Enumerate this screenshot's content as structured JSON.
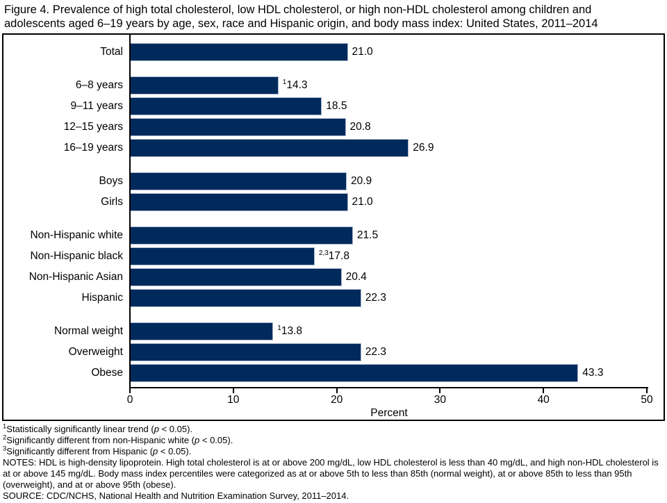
{
  "title": "Figure 4. Prevalence of high total cholesterol, low HDL cholesterol, or high non-HDL cholesterol among children and adolescents aged 6–19 years by age, sex, race and Hispanic origin, and body mass index: United States, 2011–2014",
  "chart_data": {
    "type": "bar",
    "orientation": "horizontal",
    "xlabel": "Percent",
    "xlim": [
      0,
      50
    ],
    "xticks": [
      0,
      10,
      20,
      30,
      40,
      50
    ],
    "bar_color": "#002a5c",
    "grid": false,
    "legend": false,
    "groups": [
      {
        "name": "total",
        "rows": [
          {
            "label": "Total",
            "value": 21.0,
            "value_label": "21.0",
            "sup": ""
          }
        ]
      },
      {
        "name": "age",
        "rows": [
          {
            "label": "6–8 years",
            "value": 14.3,
            "value_label": "14.3",
            "sup": "1"
          },
          {
            "label": "9–11 years",
            "value": 18.5,
            "value_label": "18.5",
            "sup": ""
          },
          {
            "label": "12–15 years",
            "value": 20.8,
            "value_label": "20.8",
            "sup": ""
          },
          {
            "label": "16–19 years",
            "value": 26.9,
            "value_label": "26.9",
            "sup": ""
          }
        ]
      },
      {
        "name": "sex",
        "rows": [
          {
            "label": "Boys",
            "value": 20.9,
            "value_label": "20.9",
            "sup": ""
          },
          {
            "label": "Girls",
            "value": 21.0,
            "value_label": "21.0",
            "sup": ""
          }
        ]
      },
      {
        "name": "race-hispanic-origin",
        "rows": [
          {
            "label": "Non-Hispanic white",
            "value": 21.5,
            "value_label": "21.5",
            "sup": ""
          },
          {
            "label": "Non-Hispanic black",
            "value": 17.8,
            "value_label": "17.8",
            "sup": "2,3"
          },
          {
            "label": "Non-Hispanic Asian",
            "value": 20.4,
            "value_label": "20.4",
            "sup": ""
          },
          {
            "label": "Hispanic",
            "value": 22.3,
            "value_label": "22.3",
            "sup": ""
          }
        ]
      },
      {
        "name": "body-mass-index",
        "rows": [
          {
            "label": "Normal weight",
            "value": 13.8,
            "value_label": "13.8",
            "sup": "1"
          },
          {
            "label": "Overweight",
            "value": 22.3,
            "value_label": "22.3",
            "sup": ""
          },
          {
            "label": "Obese",
            "value": 43.3,
            "value_label": "43.3",
            "sup": ""
          }
        ]
      }
    ]
  },
  "footnotes": [
    {
      "sup": "1",
      "text": "Statistically significantly linear trend (",
      "italic": "p",
      "tail": " < 0.05)."
    },
    {
      "sup": "2",
      "text": "Significantly different from non-Hispanic white (",
      "italic": "p",
      "tail": " < 0.05)."
    },
    {
      "sup": "3",
      "text": "Significantly different from Hispanic (",
      "italic": "p",
      "tail": " < 0.05)."
    }
  ],
  "notes": "NOTES: HDL is high-density lipoprotein. High total cholesterol is at or above 200 mg/dL, low HDL cholesterol is less than 40 mg/dL, and high non-HDL cholesterol is at or above 145 mg/dL. Body mass index percentiles were categorized as at or above 5th to less than 85th (normal weight), at or above 85th to less than 95th (overweight), and at or above 95th (obese).",
  "source": "SOURCE: CDC/NCHS, National Health and Nutrition Examination Survey, 2011–2014."
}
